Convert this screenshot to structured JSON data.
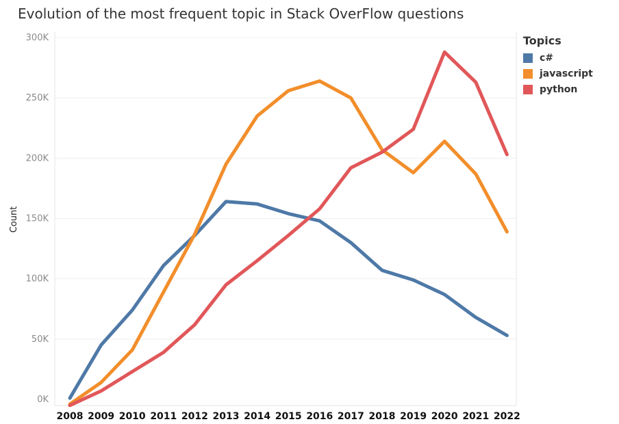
{
  "chart_data": {
    "type": "line",
    "title": "Evolution of the most frequent topic in Stack OverFlow questions",
    "xlabel": "",
    "ylabel": "Count",
    "x": [
      "2008",
      "2009",
      "2010",
      "2011",
      "2012",
      "2013",
      "2014",
      "2015",
      "2016",
      "2017",
      "2018",
      "2019",
      "2020",
      "2021",
      "2022"
    ],
    "ylim": [
      0,
      300000
    ],
    "yticks": [
      0,
      50000,
      100000,
      150000,
      200000,
      250000,
      300000
    ],
    "ytick_labels": [
      "0K",
      "50K",
      "100K",
      "150K",
      "200K",
      "250K",
      "300K"
    ],
    "grid": true,
    "legend": {
      "title": "Topics",
      "position": "right"
    },
    "series": [
      {
        "name": "c#",
        "color": "#4e79a7",
        "values": [
          1000,
          45000,
          74000,
          111000,
          136000,
          164000,
          162000,
          154000,
          148000,
          130000,
          107000,
          99000,
          87000,
          68000,
          53000
        ]
      },
      {
        "name": "javascript",
        "color": "#f28e2b",
        "values": [
          -4000,
          14000,
          41000,
          89000,
          137000,
          195000,
          235000,
          256000,
          264000,
          250000,
          207000,
          188000,
          214000,
          187000,
          139000
        ]
      },
      {
        "name": "python",
        "color": "#e15759",
        "values": [
          -5000,
          7000,
          23000,
          39000,
          62000,
          95000,
          115000,
          136000,
          158000,
          192000,
          205000,
          224000,
          288000,
          263000,
          203000
        ]
      }
    ]
  }
}
